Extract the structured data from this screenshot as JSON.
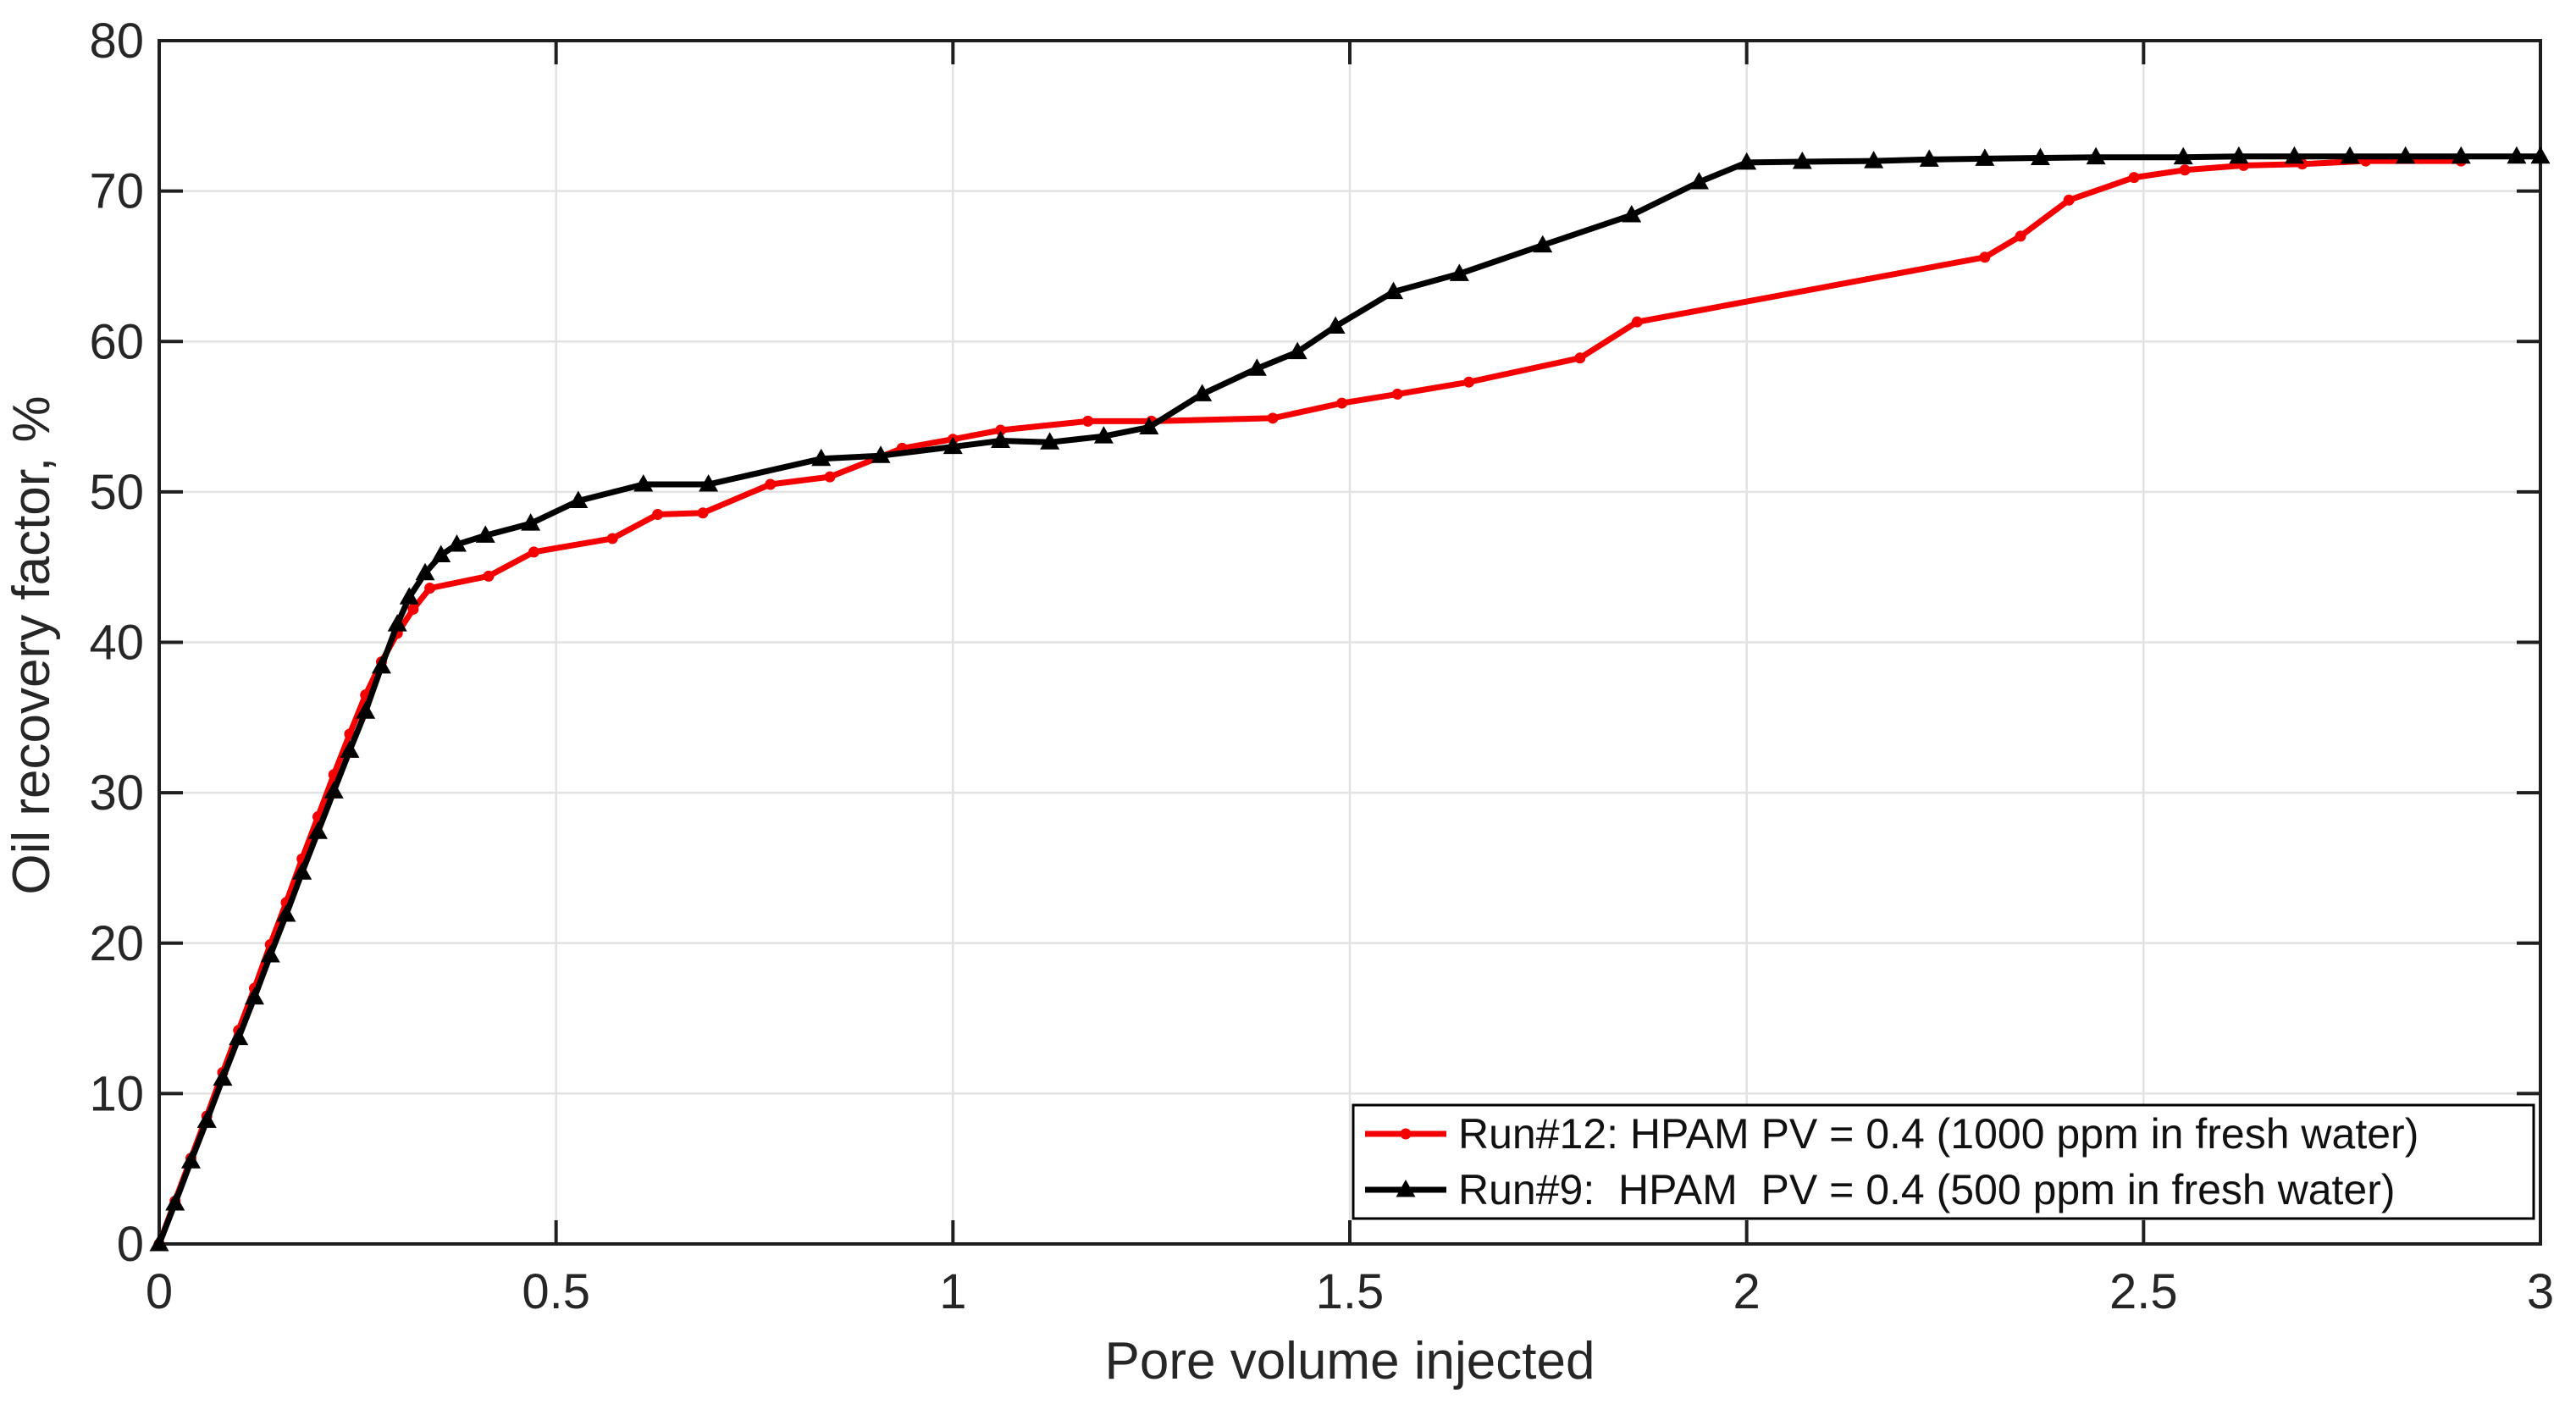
{
  "chart_data": {
    "type": "line",
    "title": "",
    "xlabel": "Pore volume injected",
    "ylabel": "Oil recovery factor, %",
    "xlim": [
      0,
      3
    ],
    "ylim": [
      0,
      80
    ],
    "x_ticks": [
      0,
      0.5,
      1,
      1.5,
      2,
      2.5,
      3
    ],
    "x_tick_labels": [
      "0",
      "0.5",
      "1",
      "1.5",
      "2",
      "2.5",
      "3"
    ],
    "y_ticks": [
      0,
      10,
      20,
      30,
      40,
      50,
      60,
      70,
      80
    ],
    "y_tick_labels": [
      "0",
      "10",
      "20",
      "30",
      "40",
      "50",
      "60",
      "70",
      "80"
    ],
    "grid": true,
    "grid_color": "#e2e2e2",
    "axis_color": "#1f1f1f",
    "background": "#ffffff",
    "legend": {
      "position": "southeast",
      "border_color": "#000000",
      "background": "#ffffff",
      "entries": [
        {
          "label": "Run#12: HPAM PV = 0.4 (1000 ppm in fresh water)",
          "color": "#f40000",
          "marker": "dot"
        },
        {
          "label": "Run#9:  HPAM  PV = 0.4 (500 ppm in fresh water)",
          "color": "#000000",
          "marker": "triangle"
        }
      ]
    },
    "series": [
      {
        "name": "Run#12: HPAM PV = 0.4 (1000 ppm in fresh water)",
        "color": "#f40000",
        "marker": "dot",
        "points": [
          [
            0,
            0
          ],
          [
            0.02,
            2.85
          ],
          [
            0.04,
            5.7
          ],
          [
            0.06,
            8.5
          ],
          [
            0.08,
            11.4
          ],
          [
            0.1,
            14.2
          ],
          [
            0.12,
            17.0
          ],
          [
            0.14,
            19.9
          ],
          [
            0.16,
            22.7
          ],
          [
            0.18,
            25.6
          ],
          [
            0.2,
            28.4
          ],
          [
            0.22,
            31.2
          ],
          [
            0.24,
            33.9
          ],
          [
            0.26,
            36.5
          ],
          [
            0.28,
            38.7
          ],
          [
            0.3,
            40.6
          ],
          [
            0.32,
            42.2
          ],
          [
            0.341,
            43.6
          ],
          [
            0.415,
            44.4
          ],
          [
            0.472,
            46.0
          ],
          [
            0.571,
            46.9
          ],
          [
            0.628,
            48.5
          ],
          [
            0.685,
            48.6
          ],
          [
            0.77,
            50.5
          ],
          [
            0.845,
            51.0
          ],
          [
            0.936,
            52.9
          ],
          [
            1.0,
            53.5
          ],
          [
            1.06,
            54.1
          ],
          [
            1.17,
            54.7
          ],
          [
            1.25,
            54.7
          ],
          [
            1.403,
            54.9
          ],
          [
            1.49,
            55.9
          ],
          [
            1.56,
            56.5
          ],
          [
            1.65,
            57.3
          ],
          [
            1.79,
            58.9
          ],
          [
            1.862,
            61.3
          ],
          [
            2.3,
            65.6
          ],
          [
            2.345,
            67.0
          ],
          [
            2.406,
            69.4
          ],
          [
            2.488,
            70.9
          ],
          [
            2.552,
            71.4
          ],
          [
            2.626,
            71.7
          ],
          [
            2.7,
            71.8
          ],
          [
            2.78,
            72.0
          ],
          [
            2.9,
            72.0
          ]
        ]
      },
      {
        "name": "Run#9:  HPAM  PV = 0.4 (500 ppm in fresh water)",
        "color": "#000000",
        "marker": "triangle",
        "points": [
          [
            0,
            0
          ],
          [
            0.02,
            2.7
          ],
          [
            0.04,
            5.5
          ],
          [
            0.06,
            8.2
          ],
          [
            0.08,
            11.0
          ],
          [
            0.1,
            13.7
          ],
          [
            0.12,
            16.4
          ],
          [
            0.14,
            19.2
          ],
          [
            0.16,
            21.9
          ],
          [
            0.18,
            24.7
          ],
          [
            0.2,
            27.4
          ],
          [
            0.22,
            30.1
          ],
          [
            0.24,
            32.8
          ],
          [
            0.26,
            35.4
          ],
          [
            0.28,
            38.4
          ],
          [
            0.3,
            41.2
          ],
          [
            0.315,
            43.0
          ],
          [
            0.335,
            44.6
          ],
          [
            0.355,
            45.8
          ],
          [
            0.375,
            46.5
          ],
          [
            0.411,
            47.1
          ],
          [
            0.468,
            47.9
          ],
          [
            0.528,
            49.4
          ],
          [
            0.61,
            50.5
          ],
          [
            0.692,
            50.5
          ],
          [
            0.834,
            52.2
          ],
          [
            0.909,
            52.4
          ],
          [
            1.0,
            53.0
          ],
          [
            1.06,
            53.4
          ],
          [
            1.122,
            53.3
          ],
          [
            1.19,
            53.7
          ],
          [
            1.247,
            54.3
          ],
          [
            1.314,
            56.5
          ],
          [
            1.383,
            58.2
          ],
          [
            1.434,
            59.3
          ],
          [
            1.482,
            61.0
          ],
          [
            1.555,
            63.3
          ],
          [
            1.638,
            64.5
          ],
          [
            1.743,
            66.4
          ],
          [
            1.855,
            68.4
          ],
          [
            1.94,
            70.6
          ],
          [
            2.0,
            71.9
          ],
          [
            2.07,
            71.95
          ],
          [
            2.16,
            72.0
          ],
          [
            2.23,
            72.1
          ],
          [
            2.3,
            72.15
          ],
          [
            2.37,
            72.2
          ],
          [
            2.44,
            72.25
          ],
          [
            2.55,
            72.25
          ],
          [
            2.62,
            72.3
          ],
          [
            2.69,
            72.3
          ],
          [
            2.76,
            72.3
          ],
          [
            2.83,
            72.3
          ],
          [
            2.9,
            72.3
          ],
          [
            2.97,
            72.3
          ],
          [
            3.0,
            72.3
          ]
        ]
      }
    ]
  }
}
